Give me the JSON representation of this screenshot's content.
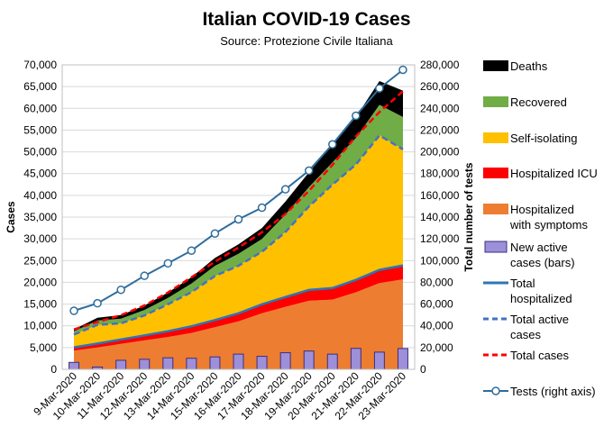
{
  "chart_data": {
    "type": "area",
    "title": "Italian COVID-19 Cases",
    "subtitle": "Source: Protezione Civile Italiana",
    "ylabel": "Cases",
    "y2label": "Total number of tests",
    "ylim": [
      0,
      70000
    ],
    "y2lim": [
      0,
      280000
    ],
    "yticks": [
      "0",
      "5,000",
      "10,000",
      "15,000",
      "20,000",
      "25,000",
      "30,000",
      "35,000",
      "40,000",
      "45,000",
      "50,000",
      "55,000",
      "60,000",
      "65,000",
      "70,000"
    ],
    "y2ticks": [
      "0",
      "20,000",
      "40,000",
      "60,000",
      "80,000",
      "100,000",
      "120,000",
      "140,000",
      "160,000",
      "180,000",
      "200,000",
      "220,000",
      "240,000",
      "260,000",
      "280,000"
    ],
    "grid": true,
    "legend_position": "right",
    "categories": [
      "9-Mar-2020",
      "10-Mar-2020",
      "11-Mar-2020",
      "12-Mar-2020",
      "13-Mar-2020",
      "14-Mar-2020",
      "15-Mar-2020",
      "16-Mar-2020",
      "17-Mar-2020",
      "18-Mar-2020",
      "19-Mar-2020",
      "20-Mar-2020",
      "21-Mar-2020",
      "22-Mar-2020",
      "23-Mar-2020"
    ],
    "stacked_series": [
      {
        "name": "Hospitalized with symptoms",
        "color": "#ED7D31",
        "values": [
          4316,
          5038,
          5838,
          6650,
          7426,
          8372,
          9663,
          11025,
          12894,
          14363,
          15757,
          16020,
          17708,
          19846,
          20692
        ]
      },
      {
        "name": "Hospitalized ICU",
        "color": "#FF0000",
        "values": [
          733,
          877,
          1028,
          1153,
          1328,
          1518,
          1672,
          1851,
          2060,
          2257,
          2498,
          2655,
          2857,
          3009,
          3204
        ]
      },
      {
        "name": "Self-isolating",
        "color": "#FFC000",
        "values": [
          2936,
          4324,
          3724,
          4585,
          6201,
          7860,
          10116,
          10938,
          12090,
          14935,
          19185,
          23783,
          26522,
          30920,
          26676
        ]
      },
      {
        "name": "Recovered",
        "color": "#70AD47",
        "values": [
          724,
          1004,
          1045,
          1258,
          1439,
          1966,
          2335,
          2749,
          2941,
          4025,
          4440,
          5129,
          6072,
          7024,
          7432
        ]
      },
      {
        "name": "Deaths",
        "color": "#000000",
        "values": [
          463,
          631,
          827,
          1016,
          1266,
          1441,
          1809,
          2158,
          2503,
          2978,
          3405,
          4032,
          4825,
          5476,
          6077
        ]
      }
    ],
    "bar_series": {
      "name": "New active cases (bars)",
      "color": "#9E8FD9",
      "values": [
        1598,
        529,
        2076,
        2313,
        2651,
        2547,
        2853,
        3497,
        2989,
        3819,
        4207,
        3491,
        4821,
        3957,
        4789
      ]
    },
    "line_series": [
      {
        "name": "Total hospitalized",
        "color": "#2E75B6",
        "style": "solid",
        "axis": "left",
        "values": [
          5049,
          5915,
          6866,
          7803,
          8754,
          9890,
          11335,
          12876,
          14954,
          16620,
          18255,
          18675,
          20565,
          22855,
          23896
        ]
      },
      {
        "name": "Total active cases",
        "color": "#4472C4",
        "style": "dashed",
        "axis": "left",
        "values": [
          7985,
          10239,
          10590,
          12388,
          14955,
          17750,
          21451,
          23814,
          27044,
          31555,
          37440,
          42458,
          47087,
          53775,
          50572
        ]
      },
      {
        "name": "Total cases",
        "color": "#FF0000",
        "style": "dashed",
        "axis": "left",
        "values": [
          9172,
          10874,
          12462,
          14662,
          17660,
          21157,
          24747,
          27980,
          31506,
          35713,
          41035,
          47021,
          53578,
          59138,
          63927
        ]
      },
      {
        "name": "Tests (right axis)",
        "color": "#2E6D9E",
        "style": "solid-marker",
        "axis": "right",
        "values": [
          53826,
          60761,
          73154,
          86011,
          97488,
          109170,
          124899,
          137962,
          148657,
          165541,
          182777,
          206886,
          233222,
          258402,
          275468
        ]
      }
    ]
  },
  "legend": [
    {
      "label": "Deaths",
      "kind": "area",
      "color": "#000000"
    },
    {
      "label": "Recovered",
      "kind": "area",
      "color": "#70AD47"
    },
    {
      "label": "Self-isolating",
      "kind": "area",
      "color": "#FFC000"
    },
    {
      "label": "Hospitalized ICU",
      "kind": "area",
      "color": "#FF0000"
    },
    {
      "label": "Hospitalized with symptoms",
      "kind": "area",
      "color": "#ED7D31"
    },
    {
      "label": "New active cases (bars)",
      "kind": "bar",
      "color": "#9E8FD9"
    },
    {
      "label": "Total hospitalized",
      "kind": "line",
      "color": "#2E75B6"
    },
    {
      "label": "Total active cases",
      "kind": "dash",
      "color": "#4472C4"
    },
    {
      "label": "Total cases",
      "kind": "dash",
      "color": "#FF0000"
    },
    {
      "label": "Tests (right axis)",
      "kind": "marker",
      "color": "#2E6D9E"
    }
  ]
}
